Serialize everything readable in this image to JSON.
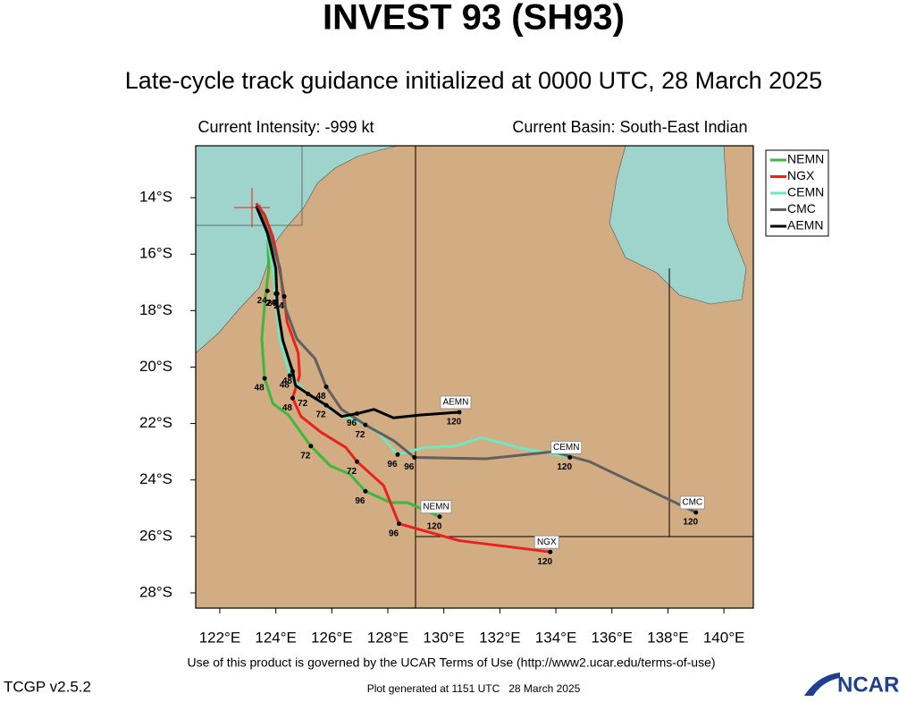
{
  "chart_data": {
    "type": "track",
    "title": "INVEST 93 (SH93)",
    "subtitle": "Late-cycle track guidance initialized at 0000 UTC, 28 March 2025",
    "intensity": "Current Intensity: -999 kt",
    "basin": "Current Basin: South-East Indian",
    "terms": "Use of this product is governed by the UCAR Terms of Use (http://www2.ucar.edu/terms-of-use)",
    "version": "TCGP v2.5.2",
    "generated": "Plot generated at 1151 UTC   28 March 2025",
    "logo": "NCAR",
    "xlim": [
      121.14,
      141.05
    ],
    "ylim": [
      -28.54,
      -12.16
    ],
    "xticks": [
      {
        "value": 122,
        "label": "122°E"
      },
      {
        "value": 124,
        "label": "124°E"
      },
      {
        "value": 126,
        "label": "126°E"
      },
      {
        "value": 128,
        "label": "128°E"
      },
      {
        "value": 130,
        "label": "130°E"
      },
      {
        "value": 132,
        "label": "132°E"
      },
      {
        "value": 134,
        "label": "134°E"
      },
      {
        "value": 136,
        "label": "136°E"
      },
      {
        "value": 138,
        "label": "138°E"
      },
      {
        "value": 140,
        "label": "140°E"
      }
    ],
    "yticks": [
      {
        "value": -14,
        "label": "14°S"
      },
      {
        "value": -16,
        "label": "16°S"
      },
      {
        "value": -18,
        "label": "18°S"
      },
      {
        "value": -20,
        "label": "20°S"
      },
      {
        "value": -22,
        "label": "22°S"
      },
      {
        "value": -24,
        "label": "24°S"
      },
      {
        "value": -26,
        "label": "26°S"
      },
      {
        "value": -28,
        "label": "28°S"
      }
    ],
    "current_position": {
      "x": 123.15,
      "y": -14.35,
      "color": "#e8221c"
    },
    "legend": "upper right",
    "series": [
      {
        "name": "NEMN",
        "color": "#3cb93c",
        "x": [
          123.4,
          123.7,
          123.75,
          123.6,
          123.5,
          123.6,
          123.9,
          124.45,
          125.25,
          125.95,
          126.65,
          127.2,
          128.1,
          128.7,
          129.85
        ],
        "y": [
          -14.25,
          -15.2,
          -16.5,
          -17.8,
          -19.0,
          -20.4,
          -21.3,
          -21.7,
          -22.8,
          -23.5,
          -23.8,
          -24.4,
          -24.8,
          -24.8,
          -25.3
        ],
        "taus": [
          {
            "tau": 24,
            "x": 123.7,
            "y": -17.3
          },
          {
            "tau": 48,
            "x": 123.6,
            "y": -20.4
          },
          {
            "tau": 72,
            "x": 125.25,
            "y": -22.8
          },
          {
            "tau": 96,
            "x": 127.2,
            "y": -24.4
          },
          {
            "tau": 120,
            "x": 129.85,
            "y": -25.3
          }
        ]
      },
      {
        "name": "NGX",
        "color": "#e8221c",
        "x": [
          123.3,
          123.6,
          123.9,
          124.1,
          124.3,
          124.4,
          124.8,
          124.85,
          124.6,
          124.9,
          125.6,
          126.5,
          126.9,
          127.85,
          128.4,
          130.55,
          133.8
        ],
        "y": [
          -14.2,
          -14.6,
          -15.4,
          -16.35,
          -17.5,
          -18.4,
          -19.5,
          -20.3,
          -21.1,
          -21.75,
          -22.3,
          -22.85,
          -23.35,
          -24.2,
          -25.55,
          -26.15,
          -26.55
        ],
        "taus": [
          {
            "tau": 24,
            "x": 124.3,
            "y": -17.5
          },
          {
            "tau": 48,
            "x": 124.6,
            "y": -21.1
          },
          {
            "tau": 72,
            "x": 126.9,
            "y": -23.35
          },
          {
            "tau": 96,
            "x": 128.4,
            "y": -25.55
          },
          {
            "tau": 120,
            "x": 133.8,
            "y": -26.55
          }
        ]
      },
      {
        "name": "CEMN",
        "color": "#6de8c0",
        "x": [
          123.35,
          123.7,
          123.9,
          124.0,
          124.15,
          124.5,
          125.15,
          126.2,
          127.55,
          128.35,
          129.3,
          130.4,
          131.35,
          132.65,
          134.5
        ],
        "y": [
          -14.3,
          -15.4,
          -16.5,
          -17.8,
          -19.05,
          -20.3,
          -20.95,
          -21.65,
          -22.2,
          -23.1,
          -22.85,
          -22.8,
          -22.5,
          -22.85,
          -23.2
        ],
        "taus": [
          {
            "tau": 24,
            "x": 124.0,
            "y": -17.4
          },
          {
            "tau": 48,
            "x": 124.5,
            "y": -20.3
          },
          {
            "tau": 72,
            "x": 125.15,
            "y": -20.95
          },
          {
            "tau": 96,
            "x": 128.35,
            "y": -23.1
          },
          {
            "tau": 120,
            "x": 134.5,
            "y": -23.2
          }
        ]
      },
      {
        "name": "CMC",
        "color": "#606060",
        "x": [
          123.35,
          123.8,
          124.15,
          124.3,
          124.75,
          125.4,
          125.8,
          126.35,
          127.2,
          128.2,
          128.95,
          131.5,
          133.9,
          135.2,
          139.0
        ],
        "y": [
          -14.3,
          -15.4,
          -16.5,
          -17.8,
          -19.0,
          -19.7,
          -20.7,
          -21.5,
          -22.05,
          -22.6,
          -23.2,
          -23.25,
          -23.0,
          -23.35,
          -25.15
        ],
        "taus": [
          {
            "tau": 24,
            "x": 124.3,
            "y": -17.5
          },
          {
            "tau": 48,
            "x": 125.8,
            "y": -20.7
          },
          {
            "tau": 72,
            "x": 127.2,
            "y": -22.05
          },
          {
            "tau": 96,
            "x": 128.95,
            "y": -23.2
          },
          {
            "tau": 120,
            "x": 139.0,
            "y": -25.15
          }
        ]
      },
      {
        "name": "AEMN",
        "color": "#000000",
        "x": [
          123.3,
          123.7,
          124.0,
          124.05,
          124.25,
          124.6,
          124.7,
          125.15,
          125.8,
          126.35,
          126.9,
          127.5,
          128.2,
          129.15,
          130.55
        ],
        "y": [
          -14.3,
          -15.25,
          -16.5,
          -17.8,
          -19.05,
          -20.15,
          -20.65,
          -20.95,
          -21.35,
          -21.75,
          -21.65,
          -21.5,
          -21.8,
          -21.7,
          -21.6
        ],
        "taus": [
          {
            "tau": 24,
            "x": 124.05,
            "y": -17.4
          },
          {
            "tau": 48,
            "x": 124.6,
            "y": -20.15
          },
          {
            "tau": 72,
            "x": 125.8,
            "y": -21.35
          },
          {
            "tau": 96,
            "x": 126.9,
            "y": -21.65
          },
          {
            "tau": 120,
            "x": 130.55,
            "y": -21.6
          }
        ]
      }
    ]
  }
}
